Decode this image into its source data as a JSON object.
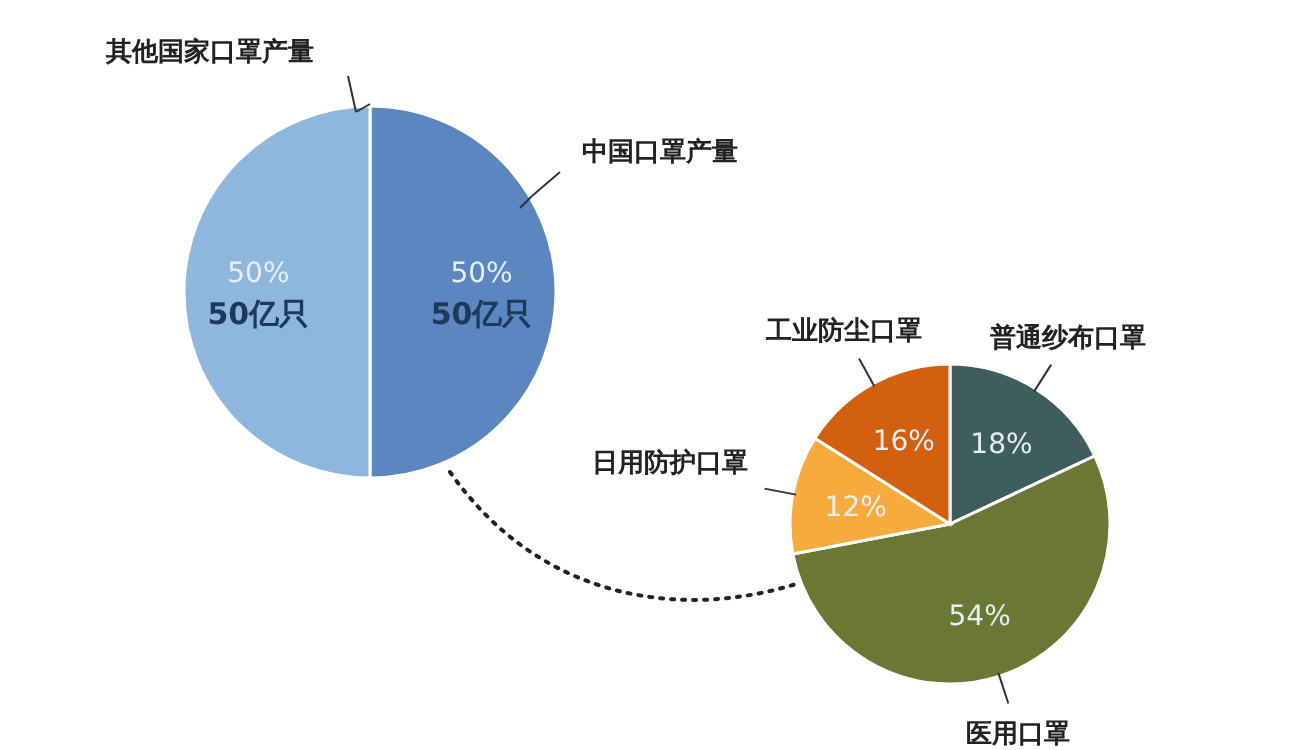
{
  "chart_data": [
    {
      "type": "pie",
      "categories": [
        "中国口罩产量",
        "其他国家口罩产量"
      ],
      "values": [
        50,
        50
      ],
      "colors": [
        "#5b86c0",
        "#8fb6dd"
      ],
      "value_labels": [
        "50%\n50亿只",
        "50%\n50亿只"
      ]
    },
    {
      "type": "pie",
      "categories": [
        "普通纱布口罩",
        "医用口罩",
        "日用防护口罩",
        "工业防尘口罩"
      ],
      "values": [
        18,
        54,
        12,
        16
      ],
      "colors": [
        "#3f5c5e",
        "#6a7834",
        "#f6ab3c",
        "#d2600e"
      ],
      "value_labels": [
        "18%",
        "54%",
        "12%",
        "16%"
      ]
    }
  ]
}
